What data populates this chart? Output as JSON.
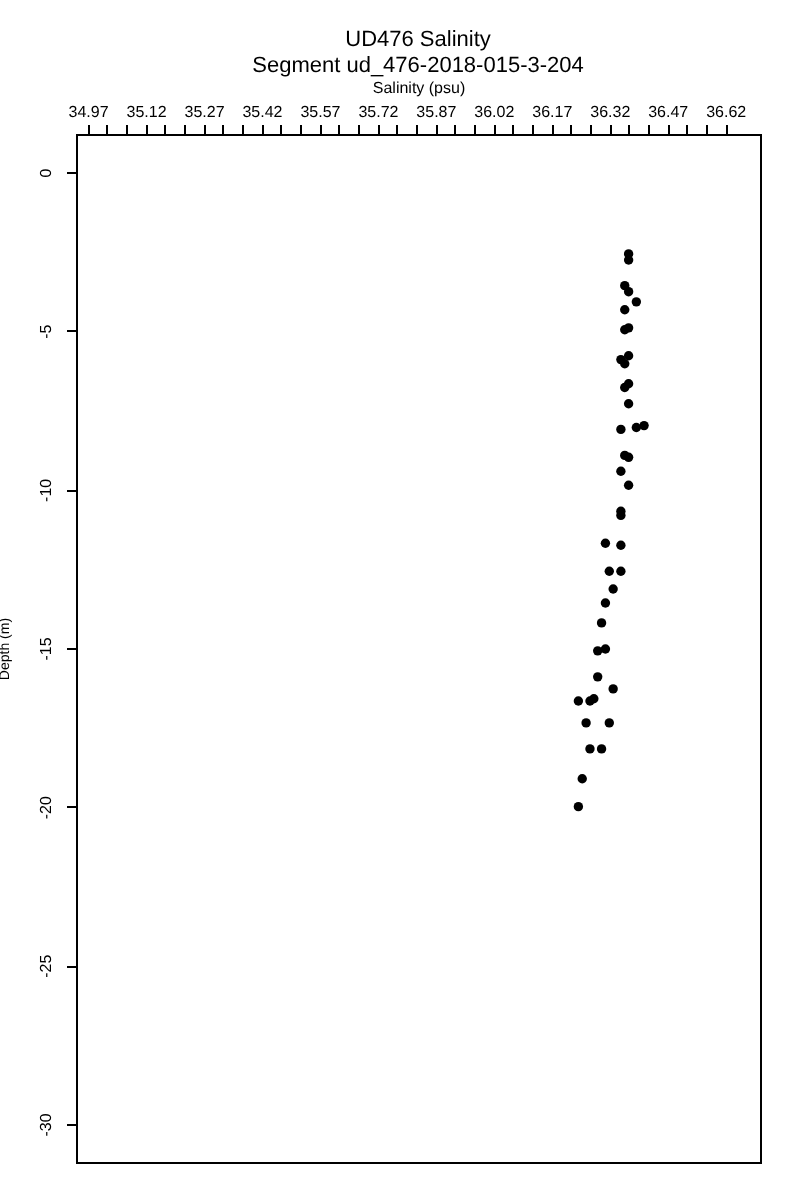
{
  "chart_data": {
    "type": "scatter",
    "title": "UD476 Salinity",
    "subtitle": "Segment ud_476-2018-015-3-204",
    "xlabel": "Salinity (psu)",
    "ylabel": "Depth (m)",
    "x": [
      36.37,
      36.37,
      36.36,
      36.37,
      36.36,
      36.39,
      36.36,
      36.37,
      36.35,
      36.36,
      36.37,
      36.37,
      36.36,
      36.37,
      36.35,
      36.39,
      36.41,
      36.36,
      36.37,
      36.35,
      36.37,
      36.35,
      36.35,
      36.31,
      36.35,
      36.32,
      36.35,
      36.33,
      36.31,
      36.3,
      36.31,
      36.29,
      36.29,
      36.28,
      36.27,
      36.33,
      36.24,
      36.32,
      36.26,
      36.27,
      36.3,
      36.25,
      36.24
    ],
    "series": [
      {
        "color": "#000000",
        "values": [
          -2.58,
          -2.77,
          -3.58,
          -3.77,
          -4.34,
          -4.09,
          -4.97,
          -4.91,
          -5.91,
          -6.04,
          -5.79,
          -6.67,
          -6.79,
          -7.3,
          -8.11,
          -8.05,
          -7.99,
          -8.93,
          -8.99,
          -9.43,
          -9.87,
          -10.69,
          -10.82,
          -11.7,
          -11.76,
          -12.58,
          -12.58,
          -13.14,
          -13.58,
          -14.21,
          -15.03,
          -15.09,
          -15.91,
          -16.6,
          -16.67,
          -16.29,
          -16.67,
          -17.36,
          -17.36,
          -18.18,
          -18.18,
          -19.12,
          -20.0
        ]
      }
    ],
    "xlim": [
      34.94,
      36.71
    ],
    "ylim": [
      -31.2,
      1.2
    ],
    "xticks": [
      34.97,
      {
        "value": 35.02,
        "label": null
      },
      {
        "value": 35.07,
        "label": null
      },
      35.12,
      {
        "value": 35.17,
        "label": null
      },
      {
        "value": 35.22,
        "label": null
      },
      35.27,
      {
        "value": 35.32,
        "label": null
      },
      {
        "value": 35.37,
        "label": null
      },
      35.42,
      {
        "value": 35.47,
        "label": null
      },
      {
        "value": 35.52,
        "label": null
      },
      35.57,
      {
        "value": 35.62,
        "label": null
      },
      {
        "value": 35.67,
        "label": null
      },
      35.72,
      {
        "value": 35.77,
        "label": null
      },
      {
        "value": 35.82,
        "label": null
      },
      35.87,
      {
        "value": 35.92,
        "label": null
      },
      {
        "value": 35.97,
        "label": null
      },
      36.02,
      {
        "value": 36.07,
        "label": null
      },
      {
        "value": 36.12,
        "label": null
      },
      36.17,
      {
        "value": 36.22,
        "label": null
      },
      {
        "value": 36.27,
        "label": null
      },
      36.32,
      {
        "value": 36.37,
        "label": null
      },
      {
        "value": 36.42,
        "label": null
      },
      36.47,
      {
        "value": 36.52,
        "label": null
      },
      {
        "value": 36.57,
        "label": null
      },
      36.62
    ],
    "yticks": [
      0,
      -5,
      -10,
      -15,
      -20,
      -25,
      -30
    ],
    "grid": false,
    "marker": "circle"
  }
}
